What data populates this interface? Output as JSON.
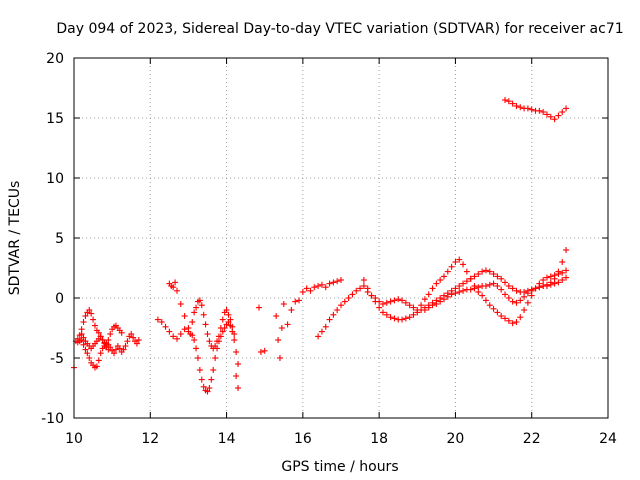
{
  "chart_data": {
    "type": "scatter",
    "title": "Day 094 of 2023, Sidereal Day-to-day VTEC variation (SDTVAR) for receiver ac71",
    "xlabel": "GPS time / hours",
    "ylabel": "SDTVAR / TECUs",
    "xlim": [
      10,
      24
    ],
    "ylim": [
      -10,
      20
    ],
    "xticks": [
      "10",
      "12",
      "14",
      "16",
      "18",
      "20",
      "22",
      "24"
    ],
    "yticks": [
      "-10",
      "-5",
      "0",
      "5",
      "10",
      "15",
      "20"
    ],
    "grid": true,
    "marker": "plus",
    "color": "#ff0000",
    "series": [
      {
        "name": "SDTVAR",
        "x": [
          10.0,
          10.1,
          10.15,
          10.2,
          10.25,
          10.3,
          10.35,
          10.4,
          10.45,
          10.5,
          10.55,
          10.6,
          10.65,
          10.7,
          10.75,
          10.8,
          10.85,
          10.9,
          10.95,
          11.0,
          11.05,
          11.1,
          11.15,
          11.2,
          11.25,
          11.3,
          11.35,
          11.4,
          11.45,
          11.5,
          11.55,
          11.6,
          11.65,
          11.7,
          10.05,
          10.1,
          10.15,
          10.2,
          10.25,
          10.3,
          10.35,
          10.4,
          10.45,
          10.5,
          10.55,
          10.6,
          10.65,
          10.7,
          10.75,
          10.8,
          10.85,
          10.9,
          10.95,
          11.0,
          11.05,
          11.1,
          11.15,
          11.2,
          11.25,
          10.2,
          10.25,
          10.3,
          10.35,
          10.4,
          10.45,
          10.5,
          10.55,
          10.6,
          10.65,
          10.7,
          10.75,
          10.8,
          10.85,
          10.9,
          12.2,
          12.3,
          12.4,
          12.5,
          12.6,
          12.7,
          12.8,
          12.9,
          13.0,
          13.1,
          13.15,
          13.2,
          13.25,
          13.3,
          13.35,
          13.4,
          13.45,
          13.5,
          13.55,
          13.6,
          13.65,
          13.7,
          13.75,
          13.8,
          13.85,
          13.9,
          13.95,
          14.0,
          14.05,
          14.1,
          14.15,
          14.2,
          14.25,
          14.3,
          12.5,
          12.55,
          12.6,
          12.65,
          12.7,
          12.8,
          12.9,
          13.0,
          13.05,
          13.1,
          13.15,
          13.2,
          13.25,
          13.3,
          13.35,
          13.4,
          13.45,
          13.5,
          13.55,
          13.6,
          13.65,
          13.7,
          13.75,
          13.8,
          13.85,
          13.9,
          13.95,
          14.0,
          14.05,
          14.1,
          14.15,
          14.2,
          14.25,
          14.3,
          14.85,
          14.9,
          15.0,
          15.3,
          15.35,
          15.4,
          15.45,
          15.5,
          15.6,
          15.7,
          15.8,
          15.9,
          16.0,
          16.1,
          16.2,
          16.3,
          16.4,
          16.5,
          16.6,
          16.7,
          16.8,
          16.9,
          17.0,
          16.4,
          16.5,
          16.6,
          16.7,
          16.8,
          16.9,
          17.0,
          17.1,
          17.2,
          17.3,
          17.4,
          17.5,
          17.6,
          17.7,
          17.8,
          17.9,
          18.0,
          18.1,
          18.2,
          18.3,
          18.4,
          18.5,
          18.6,
          18.7,
          18.8,
          18.9,
          19.0,
          19.1,
          19.2,
          19.3,
          19.4,
          19.5,
          19.6,
          19.7,
          19.8,
          19.9,
          20.0,
          20.1,
          20.2,
          20.3,
          20.4,
          20.5,
          20.6,
          20.7,
          20.8,
          20.9,
          21.0,
          21.1,
          21.2,
          21.3,
          21.4,
          21.5,
          21.6,
          21.7,
          21.8,
          21.9,
          22.0,
          22.1,
          22.2,
          22.3,
          22.4,
          22.5,
          22.6,
          22.7,
          22.8,
          22.9,
          17.6,
          17.7,
          17.8,
          17.9,
          18.0,
          18.1,
          18.2,
          18.3,
          18.4,
          18.5,
          18.6,
          18.7,
          18.8,
          18.9,
          19.0,
          19.1,
          19.2,
          19.3,
          19.4,
          19.5,
          19.6,
          19.7,
          19.8,
          19.9,
          20.0,
          20.1,
          20.2,
          20.3,
          20.4,
          20.5,
          20.6,
          20.7,
          20.8,
          20.9,
          21.0,
          21.1,
          21.2,
          21.3,
          21.4,
          21.5,
          21.6,
          21.7,
          21.8,
          21.9,
          22.0,
          22.1,
          22.2,
          22.3,
          22.4,
          22.5,
          22.6,
          22.7,
          22.8,
          22.9,
          19.2,
          19.3,
          19.4,
          19.5,
          19.6,
          19.7,
          19.8,
          19.9,
          20.0,
          20.1,
          20.2,
          20.3,
          20.4,
          20.5,
          20.6,
          20.7,
          20.8,
          20.9,
          21.0,
          21.1,
          21.2,
          21.3,
          21.4,
          21.5,
          21.6,
          21.7,
          21.8,
          21.9,
          22.0,
          22.1,
          22.2,
          22.3,
          22.4,
          22.5,
          22.6,
          22.7,
          22.8,
          22.9,
          21.3,
          21.4,
          21.5,
          21.6,
          21.7,
          21.8,
          21.9,
          22.0,
          22.1,
          22.2,
          22.3,
          22.4,
          22.5,
          22.6,
          22.7,
          22.8,
          22.9
        ],
        "y": [
          -5.8,
          -3.7,
          -3.6,
          -3.5,
          -3.9,
          -4.3,
          -4.6,
          -5.0,
          -5.4,
          -5.6,
          -5.8,
          -5.7,
          -5.2,
          -4.6,
          -4.2,
          -4.0,
          -3.8,
          -3.9,
          -4.1,
          -4.4,
          -4.6,
          -4.3,
          -4.0,
          -4.2,
          -4.5,
          -4.3,
          -4.0,
          -3.6,
          -3.2,
          -3.0,
          -3.3,
          -3.6,
          -3.8,
          -3.5,
          -3.6,
          -3.4,
          -3.1,
          -2.6,
          -2.0,
          -1.5,
          -1.2,
          -1.0,
          -1.3,
          -1.8,
          -2.3,
          -2.7,
          -2.9,
          -3.2,
          -3.5,
          -3.7,
          -3.9,
          -3.5,
          -3.0,
          -2.6,
          -2.4,
          -2.3,
          -2.5,
          -2.7,
          -2.9,
          -3.0,
          -3.3,
          -3.6,
          -3.8,
          -4.0,
          -4.2,
          -4.0,
          -3.8,
          -3.6,
          -3.4,
          -3.2,
          -3.5,
          -3.8,
          -4.1,
          -4.3,
          -1.8,
          -2.0,
          -2.4,
          -2.8,
          -3.2,
          -3.4,
          -3.0,
          -2.6,
          -2.8,
          -3.1,
          -3.5,
          -4.2,
          -5.0,
          -6.0,
          -6.8,
          -7.4,
          -7.7,
          -7.8,
          -7.5,
          -6.8,
          -6.0,
          -5.0,
          -4.2,
          -3.6,
          -3.2,
          -2.8,
          -2.5,
          -2.2,
          -2.0,
          -2.3,
          -2.8,
          -3.5,
          -4.5,
          -5.5,
          1.2,
          1.0,
          0.9,
          1.3,
          0.6,
          -0.5,
          -1.5,
          -2.5,
          -3.0,
          -2.0,
          -1.2,
          -0.8,
          -0.3,
          -0.2,
          -0.6,
          -1.4,
          -2.2,
          -3.0,
          -3.6,
          -4.0,
          -4.2,
          -4.0,
          -3.6,
          -3.2,
          -2.5,
          -1.8,
          -1.2,
          -1.0,
          -1.4,
          -1.8,
          -2.4,
          -3.0,
          -6.5,
          -7.5,
          -0.8,
          -4.5,
          -4.4,
          -1.5,
          -3.5,
          -5.0,
          -2.5,
          -0.5,
          -2.2,
          -1.0,
          -0.3,
          -0.2,
          0.5,
          0.8,
          0.6,
          0.9,
          1.0,
          1.1,
          0.9,
          1.2,
          1.3,
          1.4,
          1.5,
          -3.2,
          -2.8,
          -2.4,
          -1.8,
          -1.4,
          -1.0,
          -0.6,
          -0.3,
          0.0,
          0.3,
          0.6,
          0.8,
          1.0,
          0.5,
          0.2,
          0.0,
          -0.3,
          -0.5,
          -0.4,
          -0.3,
          -0.2,
          -0.1,
          -0.2,
          -0.4,
          -0.6,
          -0.8,
          -1.0,
          -0.6,
          -0.1,
          0.3,
          0.8,
          1.2,
          1.5,
          1.8,
          2.2,
          2.6,
          3.0,
          3.2,
          2.8,
          2.2,
          1.6,
          1.0,
          0.5,
          0.2,
          -0.2,
          -0.6,
          -0.9,
          -1.2,
          -1.5,
          -1.7,
          -1.9,
          -2.1,
          -2.0,
          -1.6,
          -1.0,
          -0.4,
          0.2,
          0.8,
          1.2,
          1.5,
          1.7,
          1.8,
          1.9,
          2.0,
          2.1,
          2.3,
          1.5,
          0.8,
          0.2,
          -0.3,
          -0.8,
          -1.2,
          -1.4,
          -1.6,
          -1.7,
          -1.8,
          -1.8,
          -1.7,
          -1.6,
          -1.4,
          -1.2,
          -1.0,
          -0.8,
          -0.6,
          -0.4,
          -0.2,
          0.0,
          0.2,
          0.4,
          0.6,
          0.8,
          1.0,
          1.2,
          1.4,
          1.6,
          1.8,
          2.0,
          2.2,
          2.3,
          2.2,
          2.0,
          1.8,
          1.6,
          1.3,
          1.0,
          0.8,
          0.6,
          0.5,
          0.5,
          0.6,
          0.7,
          0.8,
          0.9,
          1.0,
          1.1,
          1.3,
          1.6,
          2.2,
          3.0,
          4.0,
          -1.0,
          -0.8,
          -0.6,
          -0.5,
          -0.3,
          -0.1,
          0.1,
          0.3,
          0.4,
          0.5,
          0.6,
          0.7,
          0.7,
          0.8,
          0.9,
          1.0,
          1.0,
          1.1,
          1.2,
          1.0,
          0.7,
          0.3,
          0.0,
          -0.3,
          -0.4,
          -0.2,
          0.1,
          0.4,
          0.6,
          0.8,
          0.9,
          1.0,
          1.0,
          1.1,
          1.2,
          1.3,
          1.5,
          1.7,
          16.5,
          16.4,
          16.2,
          16.0,
          15.9,
          15.8,
          15.8,
          15.7,
          15.6,
          15.6,
          15.5,
          15.3,
          15.1,
          14.9,
          15.2,
          15.5,
          15.8
        ]
      }
    ]
  }
}
